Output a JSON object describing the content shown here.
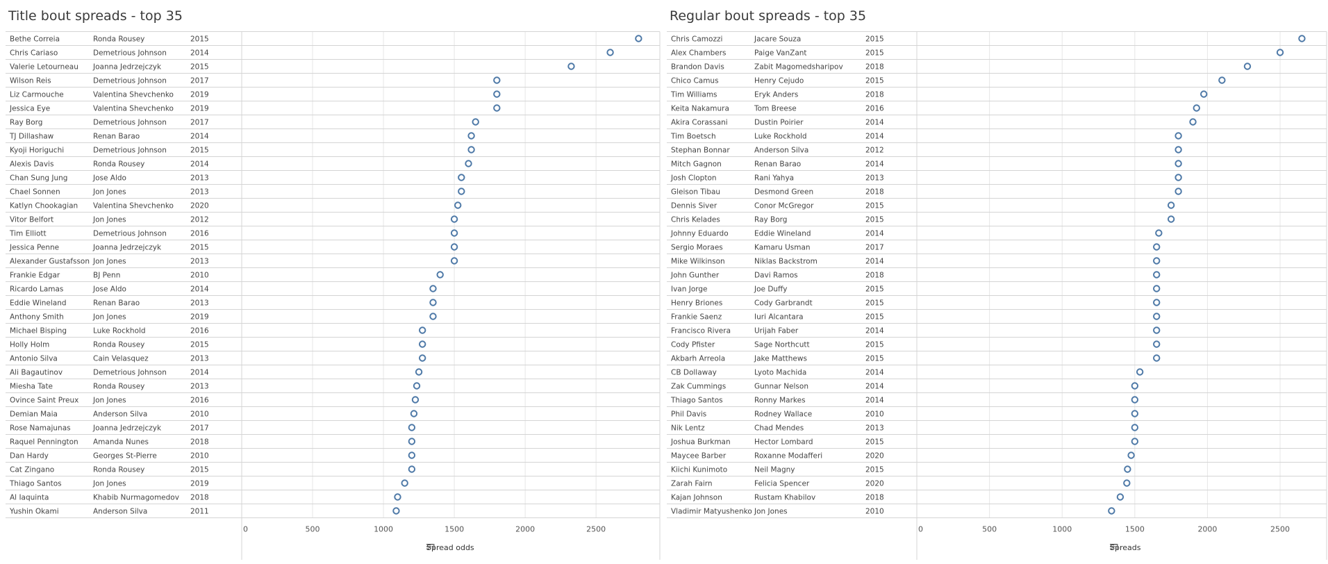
{
  "chart_data": [
    {
      "type": "scatter",
      "title": "Title bout spreads -  top 35",
      "xlabel": "Spread odds",
      "xlim": [
        0,
        2950
      ],
      "xticks": [
        0,
        500,
        1000,
        1500,
        2000,
        2500
      ],
      "sort_icon": "sort-descending-icon",
      "rows": [
        {
          "fighter": "Bethe Correia",
          "opponent": "Ronda Rousey",
          "year": "2015",
          "value": 2800
        },
        {
          "fighter": "Chris Cariaso",
          "opponent": "Demetrious Johnson",
          "year": "2014",
          "value": 2600
        },
        {
          "fighter": "Valerie Letourneau",
          "opponent": "Joanna Jedrzejczyk",
          "year": "2015",
          "value": 2325
        },
        {
          "fighter": "Wilson Reis",
          "opponent": "Demetrious Johnson",
          "year": "2017",
          "value": 1800
        },
        {
          "fighter": "Liz Carmouche",
          "opponent": "Valentina Shevchenko",
          "year": "2019",
          "value": 1800
        },
        {
          "fighter": "Jessica Eye",
          "opponent": "Valentina Shevchenko",
          "year": "2019",
          "value": 1800
        },
        {
          "fighter": "Ray Borg",
          "opponent": "Demetrious Johnson",
          "year": "2017",
          "value": 1650
        },
        {
          "fighter": "TJ Dillashaw",
          "opponent": "Renan Barao",
          "year": "2014",
          "value": 1620
        },
        {
          "fighter": "Kyoji Horiguchi",
          "opponent": "Demetrious Johnson",
          "year": "2015",
          "value": 1620
        },
        {
          "fighter": "Alexis Davis",
          "opponent": "Ronda Rousey",
          "year": "2014",
          "value": 1600
        },
        {
          "fighter": "Chan Sung Jung",
          "opponent": "Jose Aldo",
          "year": "2013",
          "value": 1550
        },
        {
          "fighter": "Chael Sonnen",
          "opponent": "Jon Jones",
          "year": "2013",
          "value": 1550
        },
        {
          "fighter": "Katlyn Chookagian",
          "opponent": "Valentina Shevchenko",
          "year": "2020",
          "value": 1525
        },
        {
          "fighter": "Vitor Belfort",
          "opponent": "Jon Jones",
          "year": "2012",
          "value": 1500
        },
        {
          "fighter": "Tim Elliott",
          "opponent": "Demetrious Johnson",
          "year": "2016",
          "value": 1500
        },
        {
          "fighter": "Jessica Penne",
          "opponent": "Joanna Jedrzejczyk",
          "year": "2015",
          "value": 1500
        },
        {
          "fighter": "Alexander Gustafsson",
          "opponent": "Jon Jones",
          "year": "2013",
          "value": 1500
        },
        {
          "fighter": "Frankie Edgar",
          "opponent": "BJ Penn",
          "year": "2010",
          "value": 1400
        },
        {
          "fighter": "Ricardo Lamas",
          "opponent": "Jose Aldo",
          "year": "2014",
          "value": 1350
        },
        {
          "fighter": "Eddie Wineland",
          "opponent": "Renan Barao",
          "year": "2013",
          "value": 1350
        },
        {
          "fighter": "Anthony Smith",
          "opponent": "Jon Jones",
          "year": "2019",
          "value": 1350
        },
        {
          "fighter": "Michael Bisping",
          "opponent": "Luke Rockhold",
          "year": "2016",
          "value": 1275
        },
        {
          "fighter": "Holly Holm",
          "opponent": "Ronda Rousey",
          "year": "2015",
          "value": 1275
        },
        {
          "fighter": "Antonio Silva",
          "opponent": "Cain Velasquez",
          "year": "2013",
          "value": 1275
        },
        {
          "fighter": "Ali Bagautinov",
          "opponent": "Demetrious Johnson",
          "year": "2014",
          "value": 1250
        },
        {
          "fighter": "Miesha Tate",
          "opponent": "Ronda Rousey",
          "year": "2013",
          "value": 1235
        },
        {
          "fighter": "Ovince Saint Preux",
          "opponent": "Jon Jones",
          "year": "2016",
          "value": 1225
        },
        {
          "fighter": "Demian Maia",
          "opponent": "Anderson Silva",
          "year": "2010",
          "value": 1215
        },
        {
          "fighter": "Rose Namajunas",
          "opponent": "Joanna Jedrzejczyk",
          "year": "2017",
          "value": 1200
        },
        {
          "fighter": "Raquel Pennington",
          "opponent": "Amanda Nunes",
          "year": "2018",
          "value": 1200
        },
        {
          "fighter": "Dan Hardy",
          "opponent": "Georges St-Pierre",
          "year": "2010",
          "value": 1200
        },
        {
          "fighter": "Cat Zingano",
          "opponent": "Ronda Rousey",
          "year": "2015",
          "value": 1200
        },
        {
          "fighter": "Thiago Santos",
          "opponent": "Jon Jones",
          "year": "2019",
          "value": 1150
        },
        {
          "fighter": "Al Iaquinta",
          "opponent": "Khabib Nurmagomedov",
          "year": "2018",
          "value": 1100
        },
        {
          "fighter": "Yushin Okami",
          "opponent": "Anderson Silva",
          "year": "2011",
          "value": 1090
        }
      ]
    },
    {
      "type": "scatter",
      "title": "Regular bout spreads -  top 35",
      "xlabel": "Spreads",
      "xlim": [
        0,
        2820
      ],
      "xticks": [
        0,
        500,
        1000,
        1500,
        2000,
        2500
      ],
      "sort_icon": "sort-descending-icon",
      "rows": [
        {
          "fighter": "Chris Camozzi",
          "opponent": "Jacare Souza",
          "year": "2015",
          "value": 2650
        },
        {
          "fighter": "Alex Chambers",
          "opponent": "Paige VanZant",
          "year": "2015",
          "value": 2500
        },
        {
          "fighter": "Brandon Davis",
          "opponent": "Zabit Magomedsharipov",
          "year": "2018",
          "value": 2275
        },
        {
          "fighter": "Chico Camus",
          "opponent": "Henry Cejudo",
          "year": "2015",
          "value": 2100
        },
        {
          "fighter": "Tim Williams",
          "opponent": "Eryk Anders",
          "year": "2018",
          "value": 1975
        },
        {
          "fighter": "Keita Nakamura",
          "opponent": "Tom Breese",
          "year": "2016",
          "value": 1925
        },
        {
          "fighter": "Akira Corassani",
          "opponent": "Dustin Poirier",
          "year": "2014",
          "value": 1900
        },
        {
          "fighter": "Tim Boetsch",
          "opponent": "Luke Rockhold",
          "year": "2014",
          "value": 1800
        },
        {
          "fighter": "Stephan Bonnar",
          "opponent": "Anderson Silva",
          "year": "2012",
          "value": 1800
        },
        {
          "fighter": "Mitch Gagnon",
          "opponent": "Renan Barao",
          "year": "2014",
          "value": 1800
        },
        {
          "fighter": "Josh Clopton",
          "opponent": "Rani Yahya",
          "year": "2013",
          "value": 1800
        },
        {
          "fighter": "Gleison Tibau",
          "opponent": "Desmond Green",
          "year": "2018",
          "value": 1800
        },
        {
          "fighter": "Dennis Siver",
          "opponent": "Conor McGregor",
          "year": "2015",
          "value": 1750
        },
        {
          "fighter": "Chris Kelades",
          "opponent": "Ray Borg",
          "year": "2015",
          "value": 1750
        },
        {
          "fighter": "Johnny Eduardo",
          "opponent": "Eddie Wineland",
          "year": "2014",
          "value": 1665
        },
        {
          "fighter": "Sergio Moraes",
          "opponent": "Kamaru Usman",
          "year": "2017",
          "value": 1650
        },
        {
          "fighter": "Mike Wilkinson",
          "opponent": "Niklas Backstrom",
          "year": "2014",
          "value": 1650
        },
        {
          "fighter": "John Gunther",
          "opponent": "Davi Ramos",
          "year": "2018",
          "value": 1650
        },
        {
          "fighter": "Ivan Jorge",
          "opponent": "Joe Duffy",
          "year": "2015",
          "value": 1650
        },
        {
          "fighter": "Henry Briones",
          "opponent": "Cody Garbrandt",
          "year": "2015",
          "value": 1650
        },
        {
          "fighter": "Frankie Saenz",
          "opponent": "Iuri Alcantara",
          "year": "2015",
          "value": 1650
        },
        {
          "fighter": "Francisco Rivera",
          "opponent": "Urijah Faber",
          "year": "2014",
          "value": 1650
        },
        {
          "fighter": "Cody Pfister",
          "opponent": "Sage Northcutt",
          "year": "2015",
          "value": 1650
        },
        {
          "fighter": "Akbarh Arreola",
          "opponent": "Jake Matthews",
          "year": "2015",
          "value": 1650
        },
        {
          "fighter": "CB Dollaway",
          "opponent": "Lyoto Machida",
          "year": "2014",
          "value": 1535
        },
        {
          "fighter": "Zak Cummings",
          "opponent": "Gunnar Nelson",
          "year": "2014",
          "value": 1500
        },
        {
          "fighter": "Thiago Santos",
          "opponent": "Ronny Markes",
          "year": "2014",
          "value": 1500
        },
        {
          "fighter": "Phil Davis",
          "opponent": "Rodney Wallace",
          "year": "2010",
          "value": 1500
        },
        {
          "fighter": "Nik Lentz",
          "opponent": "Chad Mendes",
          "year": "2013",
          "value": 1500
        },
        {
          "fighter": "Joshua Burkman",
          "opponent": "Hector Lombard",
          "year": "2015",
          "value": 1500
        },
        {
          "fighter": "Maycee Barber",
          "opponent": "Roxanne Modafferi",
          "year": "2020",
          "value": 1475
        },
        {
          "fighter": "Kiichi Kunimoto",
          "opponent": "Neil Magny",
          "year": "2015",
          "value": 1450
        },
        {
          "fighter": "Zarah Fairn",
          "opponent": "Felicia Spencer",
          "year": "2020",
          "value": 1445
        },
        {
          "fighter": "Kajan Johnson",
          "opponent": "Rustam Khabilov",
          "year": "2018",
          "value": 1400
        },
        {
          "fighter": "Vladimir Matyushenko",
          "opponent": "Jon Jones",
          "year": "2010",
          "value": 1340
        }
      ]
    }
  ],
  "colors": {
    "marker": "#4e79a7",
    "grid": "#e6e6e6",
    "rule": "#d4d4d4",
    "text": "#444444"
  }
}
